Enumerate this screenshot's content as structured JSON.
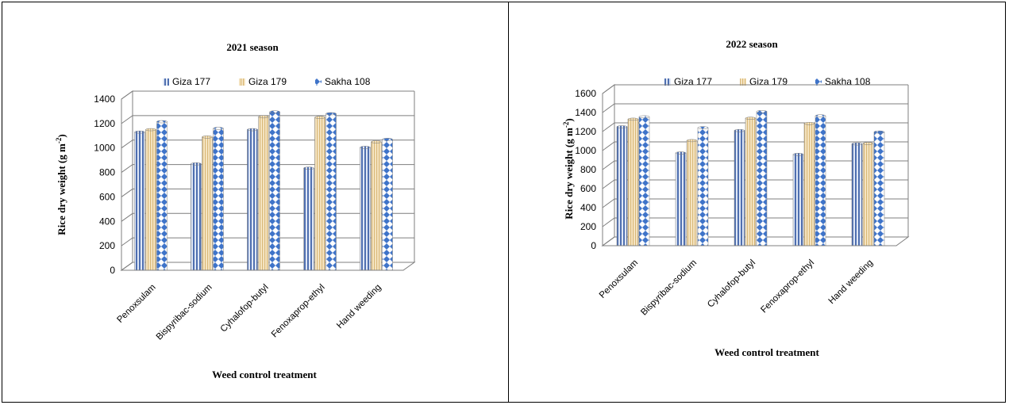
{
  "chart_data": [
    {
      "type": "bar",
      "title": "2021 season",
      "xlabel": "Weed control treatment",
      "ylabel": "Rice dry weight (g m-2)",
      "ylabel_parts": {
        "main": "Rice dry weight (g m",
        "sup": "-2",
        "end": ")"
      },
      "ylim": [
        0,
        1400
      ],
      "yticks": [
        "0",
        "200",
        "400",
        "600",
        "800",
        "1000",
        "1200",
        "1400"
      ],
      "categories": [
        "Penoxsulam",
        "Bispyribac-sodium",
        "Cyhalofop-butyl",
        "Fenoxaprop-ethyl",
        "Hand weeding"
      ],
      "series": [
        {
          "name": "Giza 177",
          "values": [
            1130,
            870,
            1150,
            835,
            1005
          ]
        },
        {
          "name": "Giza 179",
          "values": [
            1150,
            1090,
            1255,
            1250,
            1050
          ]
        },
        {
          "name": "Sakha 108",
          "values": [
            1215,
            1160,
            1295,
            1280,
            1070
          ]
        }
      ],
      "legend_position": "top",
      "grid": true
    },
    {
      "type": "bar",
      "title": "2022 season",
      "xlabel": "Weed control treatment",
      "ylabel": "Rice dry weight (g m-2)",
      "ylabel_parts": {
        "main": "Rice dry weight (g m",
        "sup": "-2",
        "end": ")"
      },
      "ylim": [
        0,
        1600
      ],
      "yticks": [
        "0",
        "200",
        "400",
        "600",
        "800",
        "1000",
        "1200",
        "1400",
        "1600"
      ],
      "categories": [
        "Penoxsulam",
        "Bispyribac-sodium",
        "Cyhalofop-butyl",
        "Fenoxaprop-ethyl",
        "Hand weeding"
      ],
      "series": [
        {
          "name": "Giza 177",
          "values": [
            1250,
            975,
            1210,
            960,
            1070
          ]
        },
        {
          "name": "Giza 179",
          "values": [
            1330,
            1105,
            1340,
            1285,
            1075
          ]
        },
        {
          "name": "Sakha 108",
          "values": [
            1355,
            1240,
            1410,
            1365,
            1195
          ]
        }
      ],
      "legend_position": "top",
      "grid": true
    }
  ],
  "colors": {
    "Giza 177": "#4f6fb0",
    "Giza 177 light": "#dfe7f5",
    "Giza 179": "#d9b877",
    "Giza 179 light": "#f7e8c8",
    "Sakha 108": "#3f74c9",
    "Sakha 108 light": "#ffffff",
    "grid": "#7f7f7f",
    "wall": "#eeeeee"
  }
}
